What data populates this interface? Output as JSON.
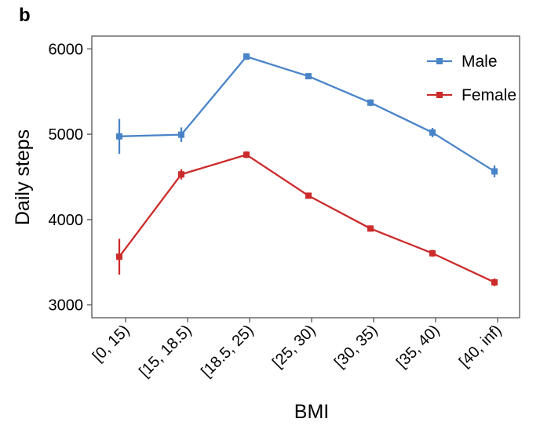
{
  "panel_label": "b",
  "chart_data": {
    "type": "line",
    "title": "",
    "xlabel": "BMI",
    "ylabel": "Daily steps",
    "categories": [
      "[0, 15)",
      "[15, 18.5)",
      "[18.5, 25)",
      "[25, 30)",
      "[30, 35)",
      "[35, 40)",
      "[40, inf)"
    ],
    "ylim": [
      2850,
      6150
    ],
    "yticks": [
      3000,
      4000,
      5000,
      6000
    ],
    "grid": false,
    "legend_position": "top-right",
    "series": [
      {
        "name": "Male",
        "color": "#4a84c8",
        "values": [
          4975,
          4995,
          5910,
          5680,
          5370,
          5020,
          4565
        ],
        "err": [
          205,
          85,
          40,
          35,
          40,
          55,
          70
        ]
      },
      {
        "name": "Female",
        "color": "#cc2b2b",
        "values": [
          3565,
          4530,
          4760,
          4280,
          3895,
          3605,
          3265
        ],
        "err": [
          210,
          60,
          40,
          35,
          35,
          40,
          45
        ]
      }
    ]
  }
}
